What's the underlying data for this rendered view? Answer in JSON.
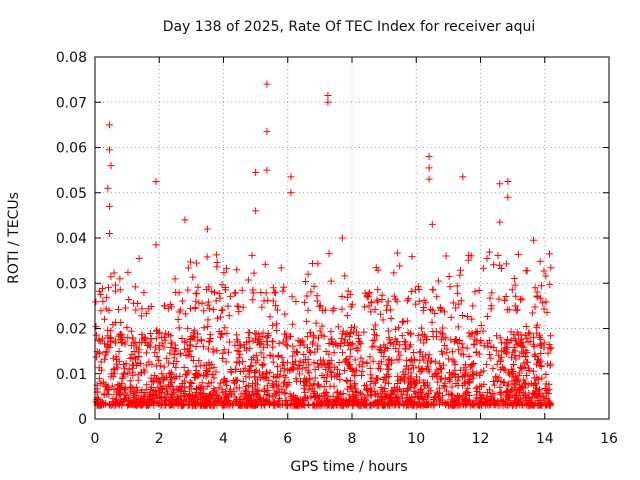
{
  "chart_data": {
    "type": "scatter",
    "title": "Day 138 of 2025, Rate Of TEC Index for receiver aqui",
    "xlabel": "GPS time / hours",
    "ylabel": "ROTI / TECUs",
    "xlim": [
      0,
      16
    ],
    "ylim": [
      0,
      0.08
    ],
    "x_ticks": [
      0,
      2,
      4,
      6,
      8,
      10,
      12,
      14,
      16
    ],
    "y_ticks": [
      0,
      0.01,
      0.02,
      0.03,
      0.04,
      0.05,
      0.06,
      0.07,
      0.08
    ],
    "x_tick_labels": [
      "0",
      "2",
      "4",
      "6",
      "8",
      "10",
      "12",
      "14",
      "16"
    ],
    "y_tick_labels": [
      "0",
      "0.01",
      "0.02",
      "0.03",
      "0.04",
      "0.05",
      "0.06",
      "0.07",
      "0.08"
    ],
    "grid": true,
    "marker": "+",
    "series": [
      {
        "name": "ROTI",
        "color": "#ff0000",
        "x_range": [
          0,
          14.2
        ],
        "typical_range": [
          0.003,
          0.025
        ],
        "notable_points": [
          {
            "x": 0.45,
            "y": 0.065
          },
          {
            "x": 0.45,
            "y": 0.0595
          },
          {
            "x": 0.5,
            "y": 0.056
          },
          {
            "x": 0.4,
            "y": 0.051
          },
          {
            "x": 0.45,
            "y": 0.047
          },
          {
            "x": 0.45,
            "y": 0.041
          },
          {
            "x": 1.9,
            "y": 0.0525
          },
          {
            "x": 1.9,
            "y": 0.0385
          },
          {
            "x": 2.8,
            "y": 0.044
          },
          {
            "x": 3.5,
            "y": 0.042
          },
          {
            "x": 5.0,
            "y": 0.0545
          },
          {
            "x": 5.0,
            "y": 0.046
          },
          {
            "x": 5.35,
            "y": 0.074
          },
          {
            "x": 5.35,
            "y": 0.0635
          },
          {
            "x": 5.35,
            "y": 0.055
          },
          {
            "x": 6.1,
            "y": 0.0535
          },
          {
            "x": 6.1,
            "y": 0.05
          },
          {
            "x": 7.25,
            "y": 0.0715
          },
          {
            "x": 7.25,
            "y": 0.07
          },
          {
            "x": 7.7,
            "y": 0.04
          },
          {
            "x": 10.4,
            "y": 0.058
          },
          {
            "x": 10.4,
            "y": 0.0555
          },
          {
            "x": 10.4,
            "y": 0.053
          },
          {
            "x": 10.5,
            "y": 0.043
          },
          {
            "x": 11.45,
            "y": 0.0535
          },
          {
            "x": 12.6,
            "y": 0.052
          },
          {
            "x": 12.85,
            "y": 0.0525
          },
          {
            "x": 12.85,
            "y": 0.049
          },
          {
            "x": 12.6,
            "y": 0.0435
          },
          {
            "x": 13.65,
            "y": 0.0395
          },
          {
            "x": 14.15,
            "y": 0.0365
          }
        ]
      }
    ]
  }
}
